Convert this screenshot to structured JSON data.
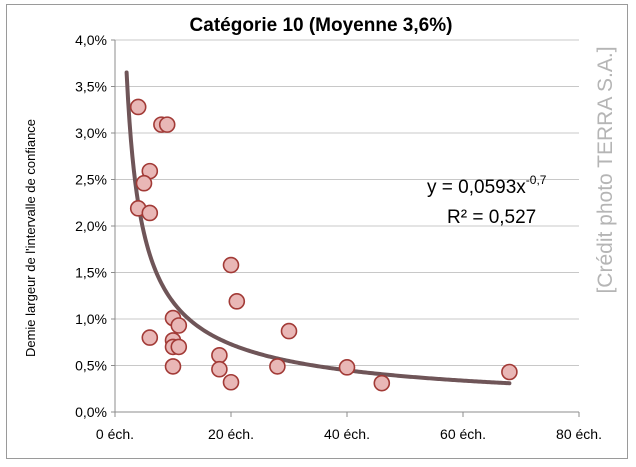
{
  "chart_data": {
    "type": "scatter",
    "title": "Catégorie 10 (Moyenne 3,6%)",
    "xlabel": "",
    "ylabel": "Demie largeur de l'intervalle de confiance",
    "xlim": [
      0,
      80
    ],
    "ylim": [
      0,
      4.0
    ],
    "x_ticks": [
      0,
      20,
      40,
      60,
      80
    ],
    "x_tick_labels": [
      "0 éch.",
      "20 éch.",
      "40 éch.",
      "60 éch.",
      "80 éch."
    ],
    "y_ticks": [
      0,
      0.5,
      1.0,
      1.5,
      2.0,
      2.5,
      3.0,
      3.5,
      4.0
    ],
    "y_tick_labels": [
      "0,0%",
      "0,5%",
      "1,0%",
      "1,5%",
      "2,0%",
      "2,5%",
      "3,0%",
      "3,5%",
      "4,0%"
    ],
    "grid": "horizontal",
    "marker_fill": "#e9b7b6",
    "marker_edge": "#a23a36",
    "trendline_color": "#6f5558",
    "points": [
      {
        "x": 4,
        "y": 3.28
      },
      {
        "x": 8,
        "y": 3.09
      },
      {
        "x": 9,
        "y": 3.09
      },
      {
        "x": 6,
        "y": 2.59
      },
      {
        "x": 5,
        "y": 2.46
      },
      {
        "x": 4,
        "y": 2.19
      },
      {
        "x": 6,
        "y": 2.14
      },
      {
        "x": 20,
        "y": 1.58
      },
      {
        "x": 21,
        "y": 1.19
      },
      {
        "x": 10,
        "y": 1.01
      },
      {
        "x": 11,
        "y": 0.93
      },
      {
        "x": 30,
        "y": 0.87
      },
      {
        "x": 6,
        "y": 0.8
      },
      {
        "x": 10,
        "y": 0.77
      },
      {
        "x": 10,
        "y": 0.7
      },
      {
        "x": 11,
        "y": 0.7
      },
      {
        "x": 18,
        "y": 0.61
      },
      {
        "x": 10,
        "y": 0.49
      },
      {
        "x": 18,
        "y": 0.46
      },
      {
        "x": 28,
        "y": 0.49
      },
      {
        "x": 40,
        "y": 0.48
      },
      {
        "x": 68,
        "y": 0.43
      },
      {
        "x": 20,
        "y": 0.32
      },
      {
        "x": 46,
        "y": 0.31
      }
    ],
    "trendline": {
      "type": "power",
      "a": 0.0593,
      "b": -0.7,
      "x_range": [
        2,
        68
      ]
    },
    "equation": {
      "y_prefix": "y = 0,0593x",
      "exponent": "-0,7",
      "r2": "R² = 0,527"
    }
  },
  "watermark": "[Crédit photo TERRA S.A.]"
}
